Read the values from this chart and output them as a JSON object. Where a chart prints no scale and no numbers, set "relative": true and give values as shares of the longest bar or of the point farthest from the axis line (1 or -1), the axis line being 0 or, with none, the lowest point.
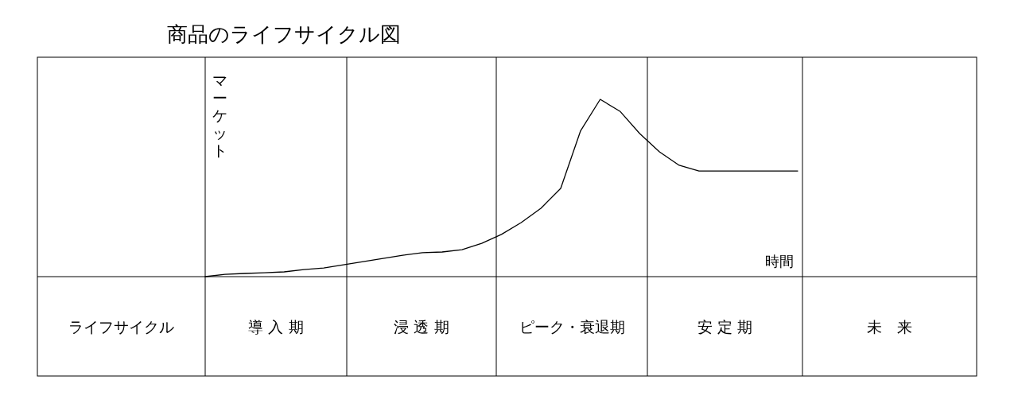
{
  "chart_data": {
    "type": "line",
    "relative": true,
    "title": "商品のライフサイクル図",
    "xlabel": "時間",
    "ylabel": "マーケット",
    "annotations": [
      "ライフサイクル",
      "導 入 期",
      "浸 透 期",
      "ピーク・衰退期",
      "安 定 期",
      "未　来"
    ],
    "categories": [
      null,
      null,
      null,
      null,
      null,
      null,
      null,
      null,
      null,
      null,
      null,
      null,
      null,
      null,
      null,
      null,
      null,
      null,
      null,
      null,
      null,
      null,
      null,
      null,
      null,
      null,
      null,
      null,
      null,
      null,
      null
    ],
    "values": [
      0,
      0.013,
      0.018,
      0.022,
      0.027,
      0.04,
      0.049,
      0.067,
      0.085,
      0.103,
      0.121,
      0.135,
      0.139,
      0.152,
      0.188,
      0.238,
      0.305,
      0.386,
      0.498,
      0.821,
      1,
      0.933,
      0.807,
      0.704,
      0.628,
      0.596,
      0.596,
      0.596,
      0.596,
      0.596,
      0.596
    ],
    "color": "#000000"
  }
}
